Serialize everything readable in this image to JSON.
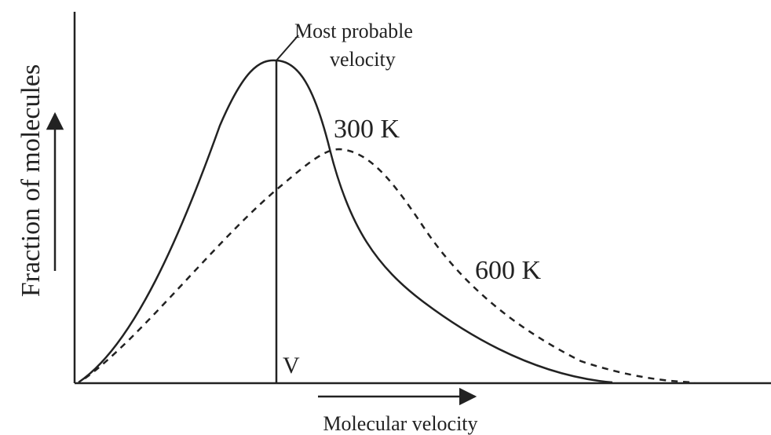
{
  "axes": {
    "y_label": "Fraction of molecules",
    "x_label": "Molecular velocity"
  },
  "annotations": {
    "peak_line1": "Most probable",
    "peak_line2": "velocity",
    "low_temp": "300 K",
    "high_temp": "600 K",
    "peak_marker": "V"
  }
}
